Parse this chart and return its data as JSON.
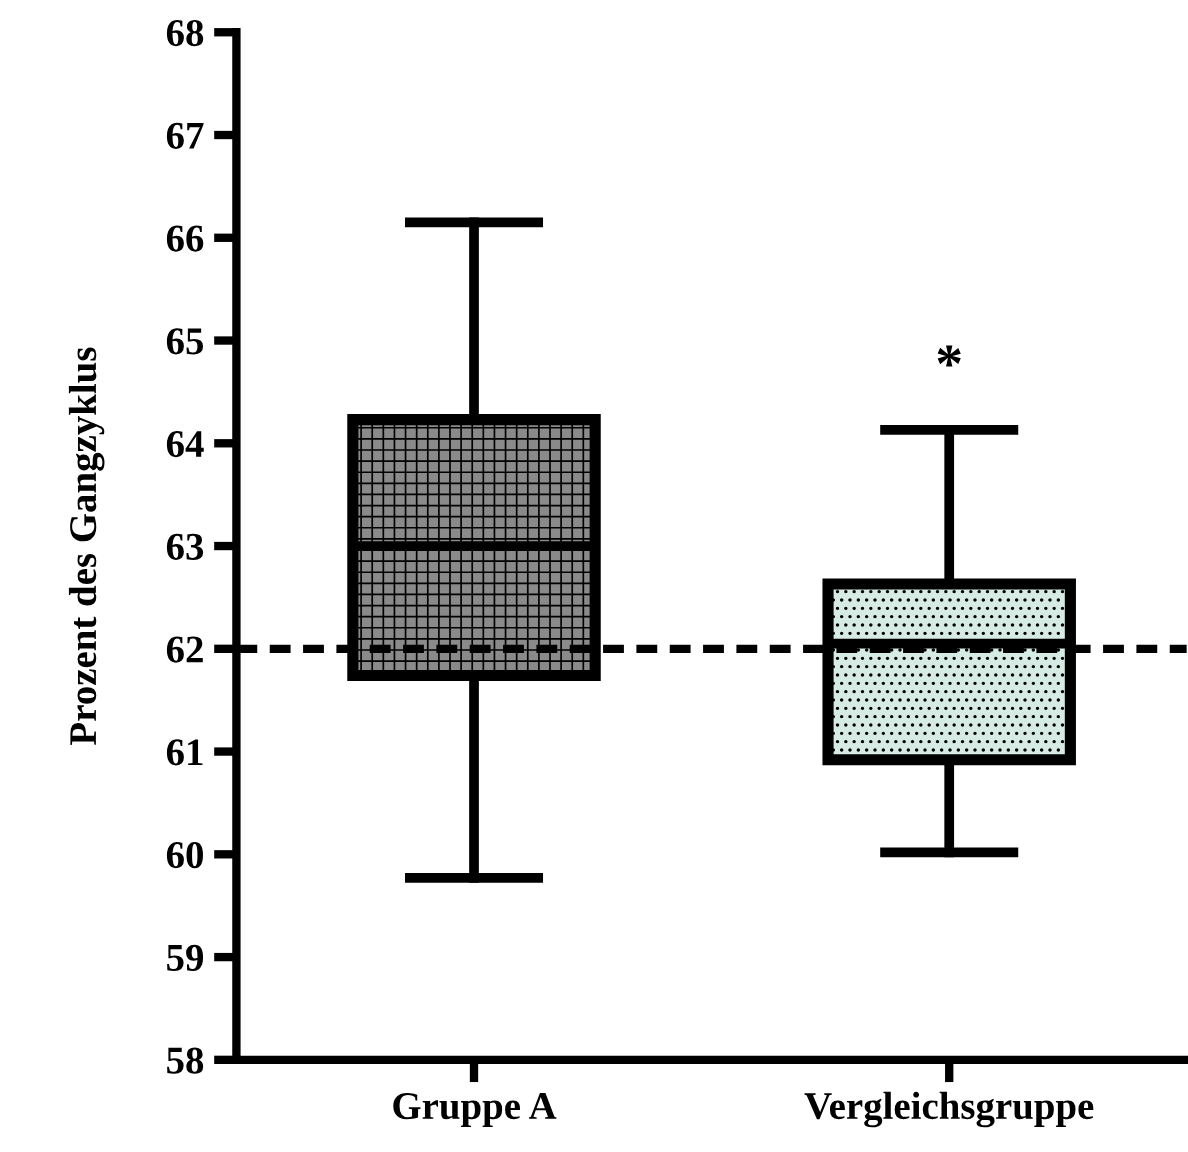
{
  "chart_data": {
    "type": "box",
    "ylabel": "Prozent des Gangzyklus",
    "categories": [
      "Gruppe A",
      "Vergleichsgruppe"
    ],
    "boxes": [
      {
        "low": 59.77,
        "q1": 61.74,
        "median": 63.0,
        "q3": 64.23,
        "high": 66.15
      },
      {
        "low": 60.02,
        "q1": 60.92,
        "median": 62.05,
        "q3": 62.63,
        "high": 64.13
      }
    ],
    "colors": [
      "#8a8a8a",
      "#d6ebe4"
    ],
    "ylim": [
      58,
      68
    ],
    "yticks": [
      58,
      59,
      60,
      61,
      62,
      63,
      64,
      65,
      66,
      67,
      68
    ],
    "ref_lines": [
      {
        "axis": "y",
        "value": 62,
        "label": null,
        "color": "#000000",
        "line_style": "dashed"
      }
    ],
    "annotations": [
      "*"
    ],
    "grid": false,
    "legend": false
  }
}
